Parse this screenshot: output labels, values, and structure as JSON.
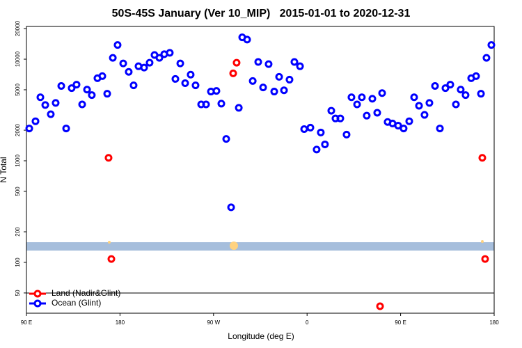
{
  "chart_data": {
    "type": "scatter",
    "title": "50S-45S January (Ver 10_MIP)   2015-01-01 to 2020-12-31",
    "x_label": "Longitude (deg E)",
    "y_label": "N Total",
    "xlim": [
      90,
      540
    ],
    "ylim": [
      31.6,
      21000
    ],
    "log_y": true,
    "legend": "lower left",
    "xticks": [
      {
        "value": 90,
        "label": "90 E"
      },
      180,
      {
        "value": 270,
        "label": "90 W"
      },
      {
        "value": 360,
        "label": "0"
      },
      {
        "value": 450,
        "label": "90 E"
      },
      {
        "value": 540,
        "label": "180"
      }
    ],
    "yticks": [
      50,
      100,
      200,
      500,
      1000,
      2000,
      5000,
      10000,
      20000
    ],
    "series": [
      {
        "name": "Land (Nadir&Glint)",
        "color": "#ff0000",
        "x": [
          169.0,
          171.7,
          288.9,
          292.2,
          430.2,
          528.6,
          531.3
        ],
        "values": [
          1070,
          108,
          7260,
          9230,
          37,
          1070,
          108
        ]
      },
      {
        "name": "Ocean (Glint)",
        "color": "#0000ff",
        "x": [
          92.7,
          98.7,
          103.4,
          108.1,
          113.4,
          118.1,
          123.5,
          128.2,
          133.5,
          138.2,
          143.6,
          148.3,
          152.9,
          158.3,
          163.0,
          167.7,
          173.1,
          177.7,
          183.1,
          188.4,
          193.1,
          197.8,
          203.2,
          208.5,
          213.2,
          217.9,
          222.6,
          227.9,
          233.3,
          238.0,
          242.7,
          248.0,
          252.7,
          258.1,
          262.8,
          267.5,
          272.8,
          277.5,
          282.2,
          286.9,
          294.3,
          297.6,
          302.3,
          307.7,
          313.0,
          317.7,
          323.0,
          328.4,
          333.1,
          337.8,
          343.1,
          347.8,
          353.2,
          357.2,
          363.2,
          369.2,
          373.2,
          377.2,
          383.3,
          387.3,
          392.0,
          398.0,
          402.7,
          408.1,
          412.7,
          417.4,
          422.8,
          427.5,
          432.2,
          437.5,
          442.2,
          447.6,
          452.9,
          458.3,
          463.0,
          467.7,
          473.0,
          477.7,
          483.1,
          487.8,
          493.1,
          497.8,
          503.2,
          507.8,
          512.5,
          517.9,
          522.6,
          527.3,
          532.6,
          537.3
        ],
        "values": [
          2080,
          2450,
          4220,
          3540,
          2870,
          3710,
          5450,
          2080,
          5190,
          5620,
          3590,
          5020,
          4430,
          6500,
          6810,
          4570,
          10300,
          13800,
          9090,
          7500,
          5530,
          8520,
          8260,
          9230,
          11000,
          10300,
          11200,
          11550,
          6390,
          9090,
          5810,
          7040,
          5530,
          3590,
          3590,
          4800,
          4870,
          3650,
          1640,
          348,
          3320,
          16400,
          15600,
          6100,
          9400,
          5270,
          8940,
          4800,
          6700,
          4940,
          6290,
          9400,
          8520,
          2050,
          2120,
          1290,
          1900,
          1450,
          3110,
          2610,
          2610,
          1810,
          4220,
          3590,
          4220,
          2780,
          4080,
          2970,
          4640,
          2410,
          2330,
          2220,
          2080,
          2450,
          4220,
          3480,
          2830,
          3710,
          5450,
          2080,
          5190,
          5620,
          3590,
          5020,
          4430,
          6500,
          6810,
          4570,
          10300,
          13800
        ]
      }
    ]
  }
}
